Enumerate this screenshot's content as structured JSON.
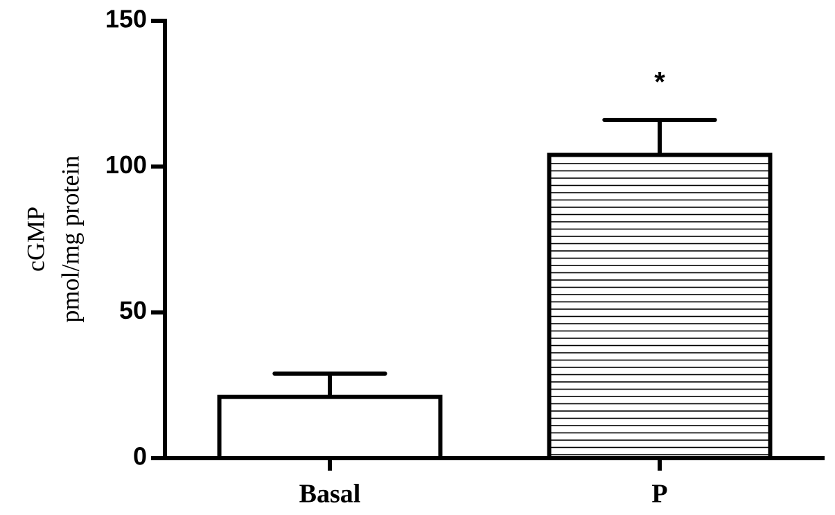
{
  "chart_data": {
    "type": "bar",
    "ylabel": [
      "cGMP",
      "pmol/mg protein"
    ],
    "categories": [
      "Basal",
      "P"
    ],
    "values": [
      21,
      104
    ],
    "errors": [
      8,
      12
    ],
    "hatch": [
      "none",
      "horizontal"
    ],
    "color": "#000000",
    "annotation": "*",
    "ylim": [
      0,
      150
    ],
    "yticks": [
      0,
      50,
      100,
      150
    ],
    "grid": false
  }
}
